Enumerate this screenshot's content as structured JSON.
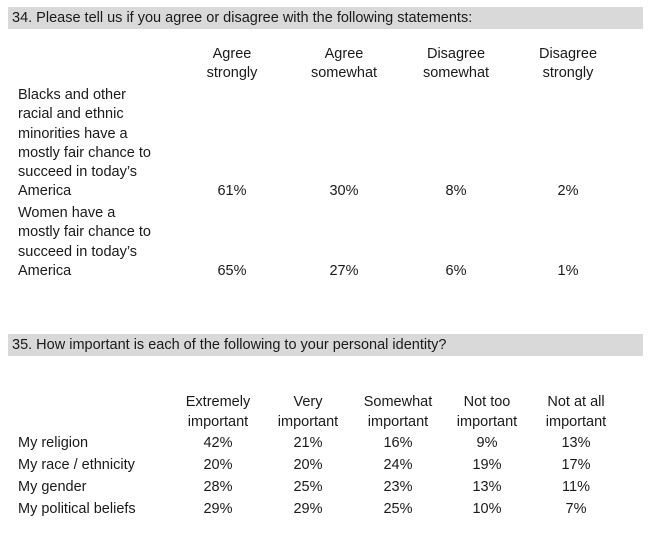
{
  "q34": {
    "title": "34. Please tell us if you agree or disagree with the following statements:",
    "columns": [
      {
        "line1": "Agree",
        "line2": "strongly"
      },
      {
        "line1": "Agree",
        "line2": "somewhat"
      },
      {
        "line1": "Disagree",
        "line2": "somewhat"
      },
      {
        "line1": "Disagree",
        "line2": "strongly"
      }
    ],
    "rows": [
      {
        "label_lines": [
          "Blacks and other",
          "racial and ethnic",
          "minorities have a",
          "mostly fair chance to",
          "succeed in today’s",
          "America"
        ],
        "values": [
          "61%",
          "30%",
          "8%",
          "2%"
        ]
      },
      {
        "label_lines": [
          "Women have a",
          "mostly fair chance to",
          "succeed in today’s",
          "America"
        ],
        "values": [
          "65%",
          "27%",
          "6%",
          "1%"
        ]
      }
    ]
  },
  "q35": {
    "title": "35. How important is each of the following to your personal identity?",
    "columns": [
      {
        "line1": "Extremely",
        "line2": "important"
      },
      {
        "line1": "Very",
        "line2": "important"
      },
      {
        "line1": "Somewhat",
        "line2": "important"
      },
      {
        "line1": "Not too",
        "line2": "important"
      },
      {
        "line1": "Not at all",
        "line2": "important"
      }
    ],
    "rows": [
      {
        "label": "My religion",
        "values": [
          "42%",
          "21%",
          "16%",
          "9%",
          "13%"
        ]
      },
      {
        "label": "My race / ethnicity",
        "values": [
          "20%",
          "20%",
          "24%",
          "19%",
          "17%"
        ]
      },
      {
        "label": "My gender",
        "values": [
          "28%",
          "25%",
          "23%",
          "13%",
          "11%"
        ]
      },
      {
        "label": "My political beliefs",
        "values": [
          "29%",
          "29%",
          "25%",
          "10%",
          "7%"
        ]
      }
    ]
  }
}
